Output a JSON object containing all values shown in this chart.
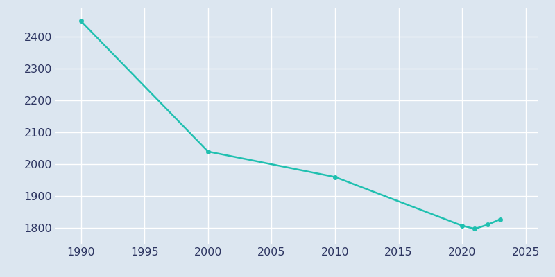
{
  "years": [
    1990,
    2000,
    2010,
    2020,
    2021,
    2022,
    2023
  ],
  "population": [
    2450,
    2040,
    1960,
    1807,
    1797,
    1810,
    1827
  ],
  "line_color": "#20c0b0",
  "marker_color": "#20c0b0",
  "background_color": "#dce6f0",
  "grid_color": "#ffffff",
  "xlim": [
    1988,
    2026
  ],
  "ylim": [
    1750,
    2490
  ],
  "xticks": [
    1990,
    1995,
    2000,
    2005,
    2010,
    2015,
    2020,
    2025
  ],
  "yticks": [
    1800,
    1900,
    2000,
    2100,
    2200,
    2300,
    2400
  ],
  "tick_label_color": "#2d3561",
  "tick_fontsize": 11.5,
  "linewidth": 1.8,
  "marker_size": 4,
  "marker_style": "o",
  "figsize": [
    8.0,
    4.0
  ],
  "dpi": 100
}
